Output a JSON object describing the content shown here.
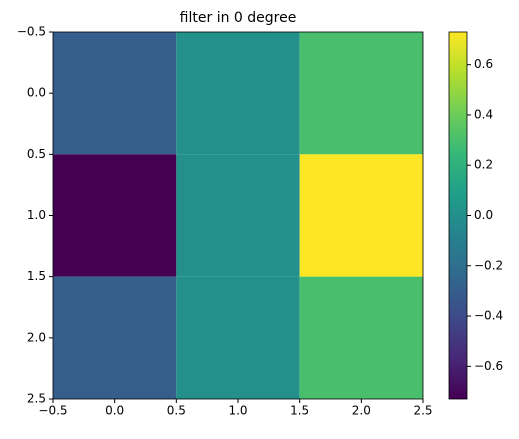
{
  "chart_data": {
    "type": "heatmap",
    "title": "filter in 0 degree",
    "colormap": "viridis",
    "x": [
      0,
      1,
      2
    ],
    "y": [
      0,
      1,
      2
    ],
    "z": [
      [
        -0.3,
        0,
        0.3
      ],
      [
        -0.73,
        0,
        0.73
      ],
      [
        -0.3,
        0,
        0.3
      ]
    ],
    "xlim": [
      -0.5,
      2.5
    ],
    "ylim": [
      2.5,
      -0.5
    ],
    "xticks": [
      {
        "value": -0.5,
        "label": "−0.5"
      },
      {
        "value": 0,
        "label": "0.0"
      },
      {
        "value": 0.5,
        "label": "0.5"
      },
      {
        "value": 1,
        "label": "1.0"
      },
      {
        "value": 1.5,
        "label": "1.5"
      },
      {
        "value": 2,
        "label": "2.0"
      },
      {
        "value": 2.5,
        "label": "2.5"
      }
    ],
    "yticks": [
      {
        "value": -0.5,
        "label": "−0.5"
      },
      {
        "value": 0,
        "label": "0.0"
      },
      {
        "value": 0.5,
        "label": "0.5"
      },
      {
        "value": 1,
        "label": "1.0"
      },
      {
        "value": 1.5,
        "label": "1.5"
      },
      {
        "value": 2,
        "label": "2.0"
      },
      {
        "value": 2.5,
        "label": "2.5"
      }
    ],
    "clim": [
      -0.73,
      0.73
    ],
    "cticks": [
      {
        "value": -0.6,
        "label": "−0.6"
      },
      {
        "value": -0.4,
        "label": "−0.4"
      },
      {
        "value": -0.2,
        "label": "−0.2"
      },
      {
        "value": 0,
        "label": "0.0"
      },
      {
        "value": 0.2,
        "label": "0.2"
      },
      {
        "value": 0.4,
        "label": "0.4"
      },
      {
        "value": 0.6,
        "label": "0.6"
      }
    ]
  }
}
